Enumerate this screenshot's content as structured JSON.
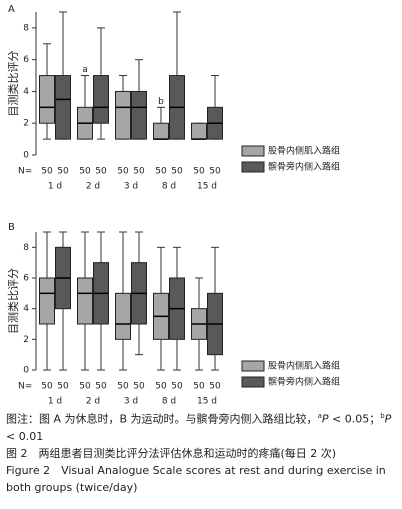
{
  "chart_data": [
    {
      "type": "box",
      "panel_label": "A",
      "y_label": "目测类比评分",
      "n_label": "N=",
      "categories": [
        "1 d",
        "2 d",
        "3 d",
        "8 d",
        "15 d"
      ],
      "ylim": [
        0,
        9
      ],
      "yticks": [
        0,
        2,
        4,
        6,
        8
      ],
      "series": [
        {
          "name": "股骨内侧肌入路组",
          "color": "#a6a6a6",
          "min": [
            1,
            1,
            1,
            1,
            1
          ],
          "q1": [
            2,
            1,
            1,
            1,
            1
          ],
          "median": [
            3,
            2,
            3,
            1,
            1
          ],
          "q3": [
            5,
            3,
            4,
            2,
            2
          ],
          "max": [
            7,
            5,
            5,
            3,
            2
          ],
          "n": [
            50,
            50,
            50,
            50,
            50
          ],
          "labels": [
            null,
            "a",
            null,
            "b",
            null
          ]
        },
        {
          "name": "髌骨旁内侧入路组",
          "color": "#595959",
          "min": [
            1,
            1,
            1,
            1,
            1
          ],
          "q1": [
            1,
            2,
            1,
            1,
            1
          ],
          "median": [
            3.5,
            3,
            3,
            3,
            2
          ],
          "q3": [
            5,
            5,
            4,
            5,
            3
          ],
          "max": [
            9,
            8,
            6,
            9,
            5
          ],
          "n": [
            50,
            50,
            50,
            50,
            50
          ]
        }
      ]
    },
    {
      "type": "box",
      "panel_label": "B",
      "y_label": "目测类比评分",
      "n_label": "N=",
      "categories": [
        "1 d",
        "2 d",
        "3 d",
        "8 d",
        "15 d"
      ],
      "ylim": [
        0,
        9
      ],
      "yticks": [
        0,
        2,
        4,
        6,
        8
      ],
      "series": [
        {
          "name": "股骨内侧肌入路组",
          "color": "#a6a6a6",
          "min": [
            0,
            0,
            0,
            0,
            0
          ],
          "q1": [
            3,
            3,
            2,
            2,
            2
          ],
          "median": [
            5,
            5,
            3,
            3.5,
            3
          ],
          "q3": [
            6,
            6,
            5,
            5,
            4
          ],
          "max": [
            9,
            9,
            9,
            8,
            6
          ],
          "n": [
            50,
            50,
            50,
            50,
            50
          ]
        },
        {
          "name": "髌骨旁内侧入路组",
          "color": "#595959",
          "min": [
            0,
            0,
            1,
            0,
            0
          ],
          "q1": [
            4,
            3,
            3,
            2,
            1
          ],
          "median": [
            6,
            5,
            5,
            4,
            3
          ],
          "q3": [
            8,
            7,
            7,
            6,
            5
          ],
          "max": [
            9,
            9,
            9,
            8,
            8
          ],
          "n": [
            50,
            50,
            50,
            50,
            50
          ]
        }
      ]
    }
  ],
  "caption": {
    "note": [
      "图注：图 A 为休息时，B 为运动时。与髌骨旁内侧入路组比较，",
      "a",
      "P",
      " < 0.05；",
      "b",
      "P",
      " < 0.01"
    ],
    "title_cn": "图 2　两组患者目测类比评分法评估休息和运动时的疼痛(每日 2 次)",
    "title_en": "Figure 2　Visual Analogue Scale scores at rest and during exercise in both groups (twice/day)"
  }
}
